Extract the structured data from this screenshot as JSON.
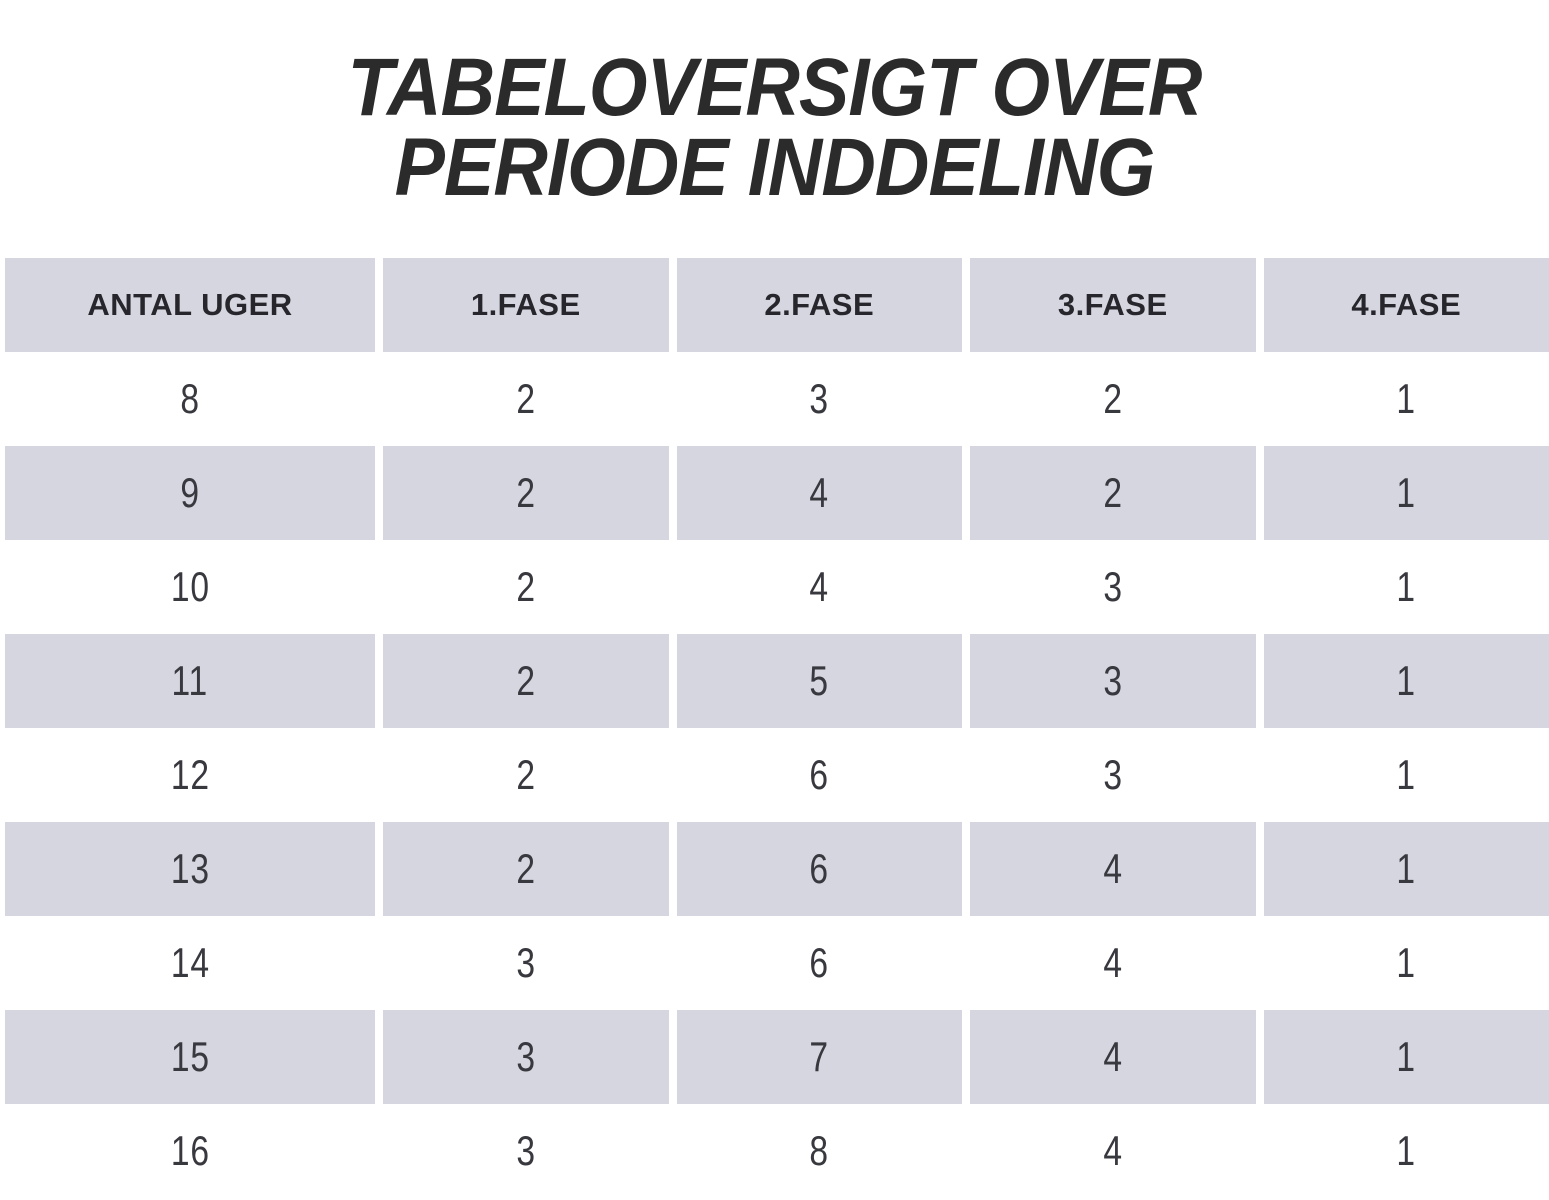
{
  "page": {
    "title_line1": "TABELOVERSIGT OVER",
    "title_line2": "PERIODE INDDELING"
  },
  "colors": {
    "page_bg": "#ffffff",
    "cell_bg": "#d6d6e0",
    "title_text": "#2b2b2b",
    "header_text": "#26262c",
    "data_text": "#38383f"
  },
  "chart_data": {
    "type": "table",
    "title": "TABELOVERSIGT OVER PERIODE INDDELING",
    "columns": [
      "ANTAL UGER",
      "1.FASE",
      "2.FASE",
      "3.FASE",
      "4.FASE"
    ],
    "rows": [
      [
        8,
        2,
        3,
        2,
        1
      ],
      [
        9,
        2,
        4,
        2,
        1
      ],
      [
        10,
        2,
        4,
        3,
        1
      ],
      [
        11,
        2,
        5,
        3,
        1
      ],
      [
        12,
        2,
        6,
        3,
        1
      ],
      [
        13,
        2,
        6,
        4,
        1
      ],
      [
        14,
        3,
        6,
        4,
        1
      ],
      [
        15,
        3,
        7,
        4,
        1
      ],
      [
        16,
        3,
        8,
        4,
        1
      ]
    ],
    "layout": {
      "header_shaded": true,
      "shaded_row_weeks": [
        9,
        11,
        13,
        15
      ],
      "grid": "off",
      "legend": "none"
    }
  }
}
